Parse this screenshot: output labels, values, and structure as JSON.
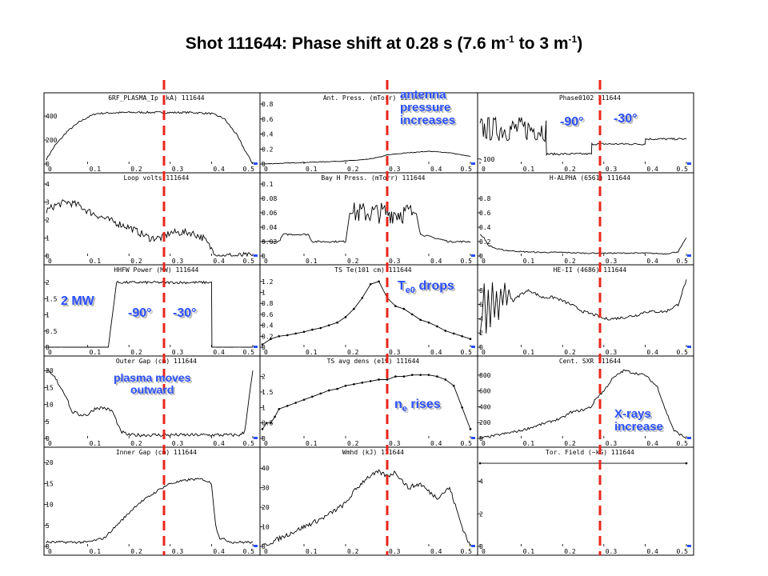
{
  "title": {
    "main": "Shot 111644: Phase shift at 0.28 s (7.6 m",
    "sup1": "-1",
    "mid": " to 3 m",
    "sup2": "-1",
    "end": ")"
  },
  "colors": {
    "marker": "#e8261c",
    "annotation": "#2b50ff",
    "trace": "#000000",
    "outline": "#000000",
    "tick_mark": "#2b50ff"
  },
  "annotations": {
    "antenna": [
      "antenna",
      "pressure",
      "increases"
    ],
    "phase_a": "-90°",
    "phase_b": "-30°",
    "power": "2 MW",
    "hhfw_a": "-90°",
    "hhfw_b": "-30°",
    "te_drop": {
      "pre": "T",
      "sub": "e0",
      "post": " drops"
    },
    "plasma_moves": [
      "plasma moves",
      "outward"
    ],
    "ne_rise": {
      "pre": "n",
      "sub": "e",
      "post": " rises"
    },
    "xrays": [
      "X-rays",
      "increase"
    ]
  },
  "chart_data": [
    {
      "type": "line",
      "title": "6RF_PLASMA_Ip (kA)",
      "shot": "111644",
      "ylim": [
        0,
        500
      ],
      "yticks": [
        "0",
        "200",
        "400"
      ],
      "xlim": [
        0,
        0.5
      ],
      "xticks": [
        "0",
        "0.1",
        "0.2",
        "0.3",
        "0.4",
        "0.5"
      ],
      "series": [
        {
          "x": [
            0,
            0.02,
            0.05,
            0.08,
            0.1,
            0.12,
            0.15,
            0.2,
            0.25,
            0.3,
            0.35,
            0.4,
            0.43,
            0.46,
            0.48,
            0.5
          ],
          "y": [
            40,
            150,
            270,
            350,
            390,
            420,
            425,
            430,
            430,
            428,
            430,
            420,
            380,
            250,
            120,
            0
          ],
          "noise": 8
        }
      ]
    },
    {
      "type": "line",
      "title": "Ant. Press. (mTorr)",
      "shot": "111644",
      "ylim": [
        0,
        0.8
      ],
      "yticks": [
        "0",
        "0.2",
        "0.4",
        "0.6",
        "0.8"
      ],
      "xlim": [
        0,
        0.5
      ],
      "xticks": [
        "0",
        "0.1",
        "0.2",
        "0.3",
        "0.4",
        "0.5"
      ],
      "series": [
        {
          "x": [
            0,
            0.05,
            0.1,
            0.15,
            0.2,
            0.25,
            0.28,
            0.3,
            0.35,
            0.4,
            0.45,
            0.48,
            0.5
          ],
          "y": [
            0,
            0.01,
            0.02,
            0.03,
            0.04,
            0.06,
            0.09,
            0.12,
            0.15,
            0.17,
            0.15,
            0.12,
            0.1
          ],
          "noise": 0.004
        }
      ]
    },
    {
      "type": "line",
      "title": "Phase0102",
      "shot": "111644",
      "ylim": [
        -120,
        120
      ],
      "yticks": [
        "-100"
      ],
      "xlim": [
        0,
        0.5
      ],
      "xticks": [
        "0",
        "0.1",
        "0.2",
        "0.3",
        "0.4",
        "0.5"
      ],
      "series": [
        {
          "x": [
            0,
            0.16,
            0.161,
            0.27,
            0.271,
            0.4,
            0.401,
            0.5
          ],
          "y": [
            20,
            20,
            -80,
            -80,
            -40,
            -40,
            -20,
            -20
          ],
          "noise": 50,
          "noise_x": [
            0,
            0.16
          ]
        }
      ]
    },
    {
      "type": "line",
      "title": "Loop volts",
      "shot": "111644",
      "ylim": [
        0,
        4
      ],
      "yticks": [
        "0",
        "1",
        "2",
        "3",
        "4"
      ],
      "xlim": [
        0,
        0.5
      ],
      "xticks": [
        "0",
        "0.1",
        "0.2",
        "0.3",
        "0.4",
        "0.5"
      ],
      "series": [
        {
          "x": [
            0,
            0.02,
            0.05,
            0.08,
            0.1,
            0.15,
            0.2,
            0.25,
            0.28,
            0.3,
            0.35,
            0.38,
            0.4,
            0.42,
            0.5
          ],
          "y": [
            2.5,
            2.8,
            3.0,
            2.8,
            2.5,
            2.0,
            1.6,
            1.0,
            1.0,
            1.3,
            1.3,
            1.0,
            0.4,
            0,
            0
          ],
          "noise": 0.2
        }
      ]
    },
    {
      "type": "line",
      "title": "Bay H Press. (mTorr)",
      "shot": "111644",
      "ylim": [
        0,
        0.1
      ],
      "yticks": [
        "0",
        "0.02",
        "0.04",
        "0.06",
        "0.08",
        "0.1"
      ],
      "xlim": [
        0,
        0.5
      ],
      "xticks": [
        "0",
        "0.1",
        "0.2",
        "0.3",
        "0.4",
        "0.5"
      ],
      "series": [
        {
          "x": [
            0,
            0.04,
            0.05,
            0.11,
            0.12,
            0.2,
            0.21,
            0.37,
            0.38,
            0.45,
            0.5
          ],
          "y": [
            0.02,
            0.02,
            0.03,
            0.03,
            0.02,
            0.02,
            0.06,
            0.06,
            0.03,
            0.02,
            0.02
          ],
          "noise": 0.015,
          "noise_x": [
            0.22,
            0.36
          ]
        }
      ]
    },
    {
      "type": "line",
      "title": "H-ALPHA (6561)",
      "shot": "111644",
      "ylim": [
        0,
        1.0
      ],
      "yticks": [
        "0",
        "0.2",
        "0.4",
        "0.6",
        "0.8"
      ],
      "xlim": [
        0,
        0.5
      ],
      "xticks": [
        "0",
        "0.1",
        "0.2",
        "0.3",
        "0.4",
        "0.5"
      ],
      "series": [
        {
          "x": [
            0,
            0.01,
            0.02,
            0.04,
            0.06,
            0.1,
            0.15,
            0.2,
            0.25,
            0.3,
            0.35,
            0.4,
            0.45,
            0.48,
            0.5
          ],
          "y": [
            0.3,
            0.25,
            0.15,
            0.1,
            0.08,
            0.06,
            0.05,
            0.05,
            0.04,
            0.04,
            0.04,
            0.04,
            0.03,
            0.06,
            0.25
          ],
          "noise": 0.008
        }
      ]
    },
    {
      "type": "line",
      "title": "HHFW Power (MW)",
      "shot": "111644",
      "ylim": [
        0,
        2.2
      ],
      "yticks": [
        "0",
        "0.5",
        "1",
        "1.5",
        "2"
      ],
      "xlim": [
        0,
        0.5
      ],
      "xticks": [
        "0",
        "0.1",
        "0.2",
        "0.3",
        "0.4",
        "0.5"
      ],
      "series": [
        {
          "x": [
            0,
            0.15,
            0.17,
            0.4,
            0.401,
            0.5
          ],
          "y": [
            0,
            0,
            2.0,
            2.0,
            0,
            0
          ],
          "noise": 0.04,
          "noise_x": [
            0.17,
            0.4
          ]
        }
      ]
    },
    {
      "type": "line",
      "title": "TS Te(101 cm)",
      "shot": "111644",
      "ylim": [
        0,
        1.3
      ],
      "yticks": [
        "0",
        "0.2",
        "0.4",
        "0.6",
        "0.8",
        "1",
        "1.2"
      ],
      "xlim": [
        0,
        0.5
      ],
      "xticks": [
        "0",
        "0.1",
        "0.2",
        "0.3",
        "0.4",
        "0.5"
      ],
      "series": [
        {
          "x": [
            0,
            0.02,
            0.04,
            0.06,
            0.08,
            0.1,
            0.12,
            0.14,
            0.16,
            0.18,
            0.2,
            0.22,
            0.24,
            0.26,
            0.28,
            0.3,
            0.32,
            0.34,
            0.36,
            0.38,
            0.4,
            0.42,
            0.44,
            0.46,
            0.48,
            0.5
          ],
          "y": [
            0.05,
            0.15,
            0.2,
            0.22,
            0.25,
            0.28,
            0.32,
            0.35,
            0.4,
            0.45,
            0.55,
            0.7,
            0.9,
            1.15,
            1.2,
            0.9,
            0.75,
            0.7,
            0.6,
            0.5,
            0.45,
            0.38,
            0.3,
            0.25,
            0.2,
            0.15
          ]
        }
      ]
    },
    {
      "type": "line",
      "title": "HE-II (4686)",
      "shot": "111644",
      "ylim": [
        0,
        10
      ],
      "yticks": [
        "0",
        "2",
        "4",
        "6",
        "8"
      ],
      "xlim": [
        0,
        0.5
      ],
      "xticks": [
        "0",
        "0.1",
        "0.2",
        "0.3",
        "0.4",
        "0.5"
      ],
      "series": [
        {
          "x": [
            0,
            0.005,
            0.01,
            0.015,
            0.02,
            0.025,
            0.03,
            0.035,
            0.04,
            0.045,
            0.05,
            0.055,
            0.06,
            0.065,
            0.07,
            0.075,
            0.08,
            0.1,
            0.12,
            0.15,
            0.18,
            0.2,
            0.22,
            0.25,
            0.28,
            0.3,
            0.32,
            0.35,
            0.38,
            0.4,
            0.45,
            0.48,
            0.5
          ],
          "y": [
            2,
            4,
            9,
            2,
            8,
            3,
            9,
            4,
            8,
            4,
            8,
            6,
            9,
            6,
            8,
            7,
            6.5,
            7.5,
            8,
            7,
            7,
            6.5,
            6,
            5,
            4.5,
            4,
            4,
            4.2,
            4.5,
            5,
            5,
            6,
            9.5
          ],
          "noise": 0.2
        }
      ]
    },
    {
      "type": "line",
      "title": "Outer Gap (cm)",
      "shot": "111644",
      "ylim": [
        0,
        21
      ],
      "yticks": [
        "0",
        "5",
        "10",
        "15",
        "20"
      ],
      "xlim": [
        0,
        0.5
      ],
      "xticks": [
        "0",
        "0.1",
        "0.2",
        "0.3",
        "0.4",
        "0.5"
      ],
      "series": [
        {
          "x": [
            0,
            0.02,
            0.05,
            0.06,
            0.08,
            0.1,
            0.12,
            0.14,
            0.16,
            0.18,
            0.2,
            0.25,
            0.28,
            0.3,
            0.35,
            0.4,
            0.45,
            0.47,
            0.48,
            0.5
          ],
          "y": [
            20,
            18,
            12,
            8,
            7,
            7,
            9,
            9,
            8,
            2,
            1,
            1,
            1,
            1,
            1,
            1,
            1,
            1,
            2,
            20
          ],
          "noise": 0.5
        }
      ]
    },
    {
      "type": "line",
      "title": "TS avg dens (e19)",
      "shot": "111644",
      "ylim": [
        0,
        2.3
      ],
      "yticks": [
        "0",
        "0.5",
        "1",
        "1.5",
        "2"
      ],
      "xlim": [
        0,
        0.5
      ],
      "xticks": [
        "0",
        "0.1",
        "0.2",
        "0.3",
        "0.4",
        "0.5"
      ],
      "series": [
        {
          "x": [
            0,
            0.01,
            0.02,
            0.03,
            0.04,
            0.06,
            0.08,
            0.1,
            0.12,
            0.14,
            0.16,
            0.18,
            0.2,
            0.22,
            0.24,
            0.26,
            0.28,
            0.3,
            0.32,
            0.34,
            0.36,
            0.38,
            0.4,
            0.42,
            0.44,
            0.46,
            0.48,
            0.5
          ],
          "y": [
            0.3,
            0.5,
            0.5,
            0.7,
            0.95,
            1.05,
            1.15,
            1.25,
            1.35,
            1.45,
            1.55,
            1.6,
            1.7,
            1.75,
            1.8,
            1.85,
            1.9,
            1.9,
            2.0,
            2.0,
            2.05,
            2.05,
            2.05,
            2.0,
            1.9,
            1.7,
            1.0,
            0.3
          ]
        }
      ]
    },
    {
      "type": "line",
      "title": "Cent. SXR",
      "shot": "111644",
      "ylim": [
        0,
        900
      ],
      "yticks": [
        "0",
        "200",
        "400",
        "600",
        "800"
      ],
      "xlim": [
        0,
        0.5
      ],
      "xticks": [
        "0",
        "0.1",
        "0.2",
        "0.3",
        "0.4",
        "0.5"
      ],
      "series": [
        {
          "x": [
            0,
            0.05,
            0.1,
            0.15,
            0.2,
            0.22,
            0.25,
            0.27,
            0.28,
            0.3,
            0.32,
            0.34,
            0.35,
            0.37,
            0.4,
            0.42,
            0.43,
            0.44,
            0.45,
            0.47,
            0.5
          ],
          "y": [
            0,
            50,
            100,
            180,
            260,
            330,
            360,
            400,
            500,
            600,
            750,
            830,
            860,
            830,
            800,
            700,
            650,
            500,
            350,
            100,
            0
          ],
          "noise": 15
        }
      ]
    },
    {
      "type": "line",
      "title": "Inner Gap (cm)",
      "shot": "111644",
      "ylim": [
        0,
        21
      ],
      "yticks": [
        "0",
        "5",
        "10",
        "15",
        "20"
      ],
      "xlim": [
        0,
        0.5
      ],
      "xticks": [
        "0",
        "0.1",
        "0.2",
        "0.3",
        "0.4",
        "0.5"
      ],
      "series": [
        {
          "x": [
            0,
            0.05,
            0.1,
            0.12,
            0.14,
            0.16,
            0.18,
            0.2,
            0.22,
            0.25,
            0.28,
            0.3,
            0.35,
            0.38,
            0.4,
            0.41,
            0.42,
            0.45,
            0.48,
            0.5
          ],
          "y": [
            1,
            1,
            1,
            1.5,
            2,
            4,
            6,
            8,
            10,
            12,
            14,
            15,
            16,
            16,
            15,
            5,
            2,
            1,
            1,
            1
          ],
          "noise": 0.3
        }
      ]
    },
    {
      "type": "line",
      "title": "Wmhd (kJ)",
      "shot": "111644",
      "ylim": [
        0,
        45
      ],
      "yticks": [
        "0",
        "10",
        "20",
        "30",
        "40"
      ],
      "xlim": [
        0,
        0.5
      ],
      "xticks": [
        "0",
        "0.1",
        "0.2",
        "0.3",
        "0.4",
        "0.5"
      ],
      "series": [
        {
          "x": [
            0,
            0.02,
            0.05,
            0.1,
            0.15,
            0.2,
            0.22,
            0.25,
            0.28,
            0.3,
            0.32,
            0.35,
            0.38,
            0.4,
            0.42,
            0.45,
            0.48,
            0.5
          ],
          "y": [
            0,
            2,
            5,
            10,
            15,
            22,
            28,
            35,
            38,
            36,
            38,
            30,
            32,
            28,
            25,
            30,
            10,
            0
          ],
          "noise": 1.2
        }
      ]
    },
    {
      "type": "line",
      "title": "Tor. Field (~kG)",
      "shot": "111644",
      "ylim": [
        0,
        5.4
      ],
      "yticks": [
        "0",
        "2",
        "4"
      ],
      "xlim": [
        0,
        0.5
      ],
      "xticks": [
        "0",
        "0.1",
        "0.2",
        "0.3",
        "0.4",
        "0.5"
      ],
      "series": [
        {
          "x": [
            0,
            0.5
          ],
          "y": [
            5.1,
            5.1
          ]
        }
      ]
    }
  ]
}
